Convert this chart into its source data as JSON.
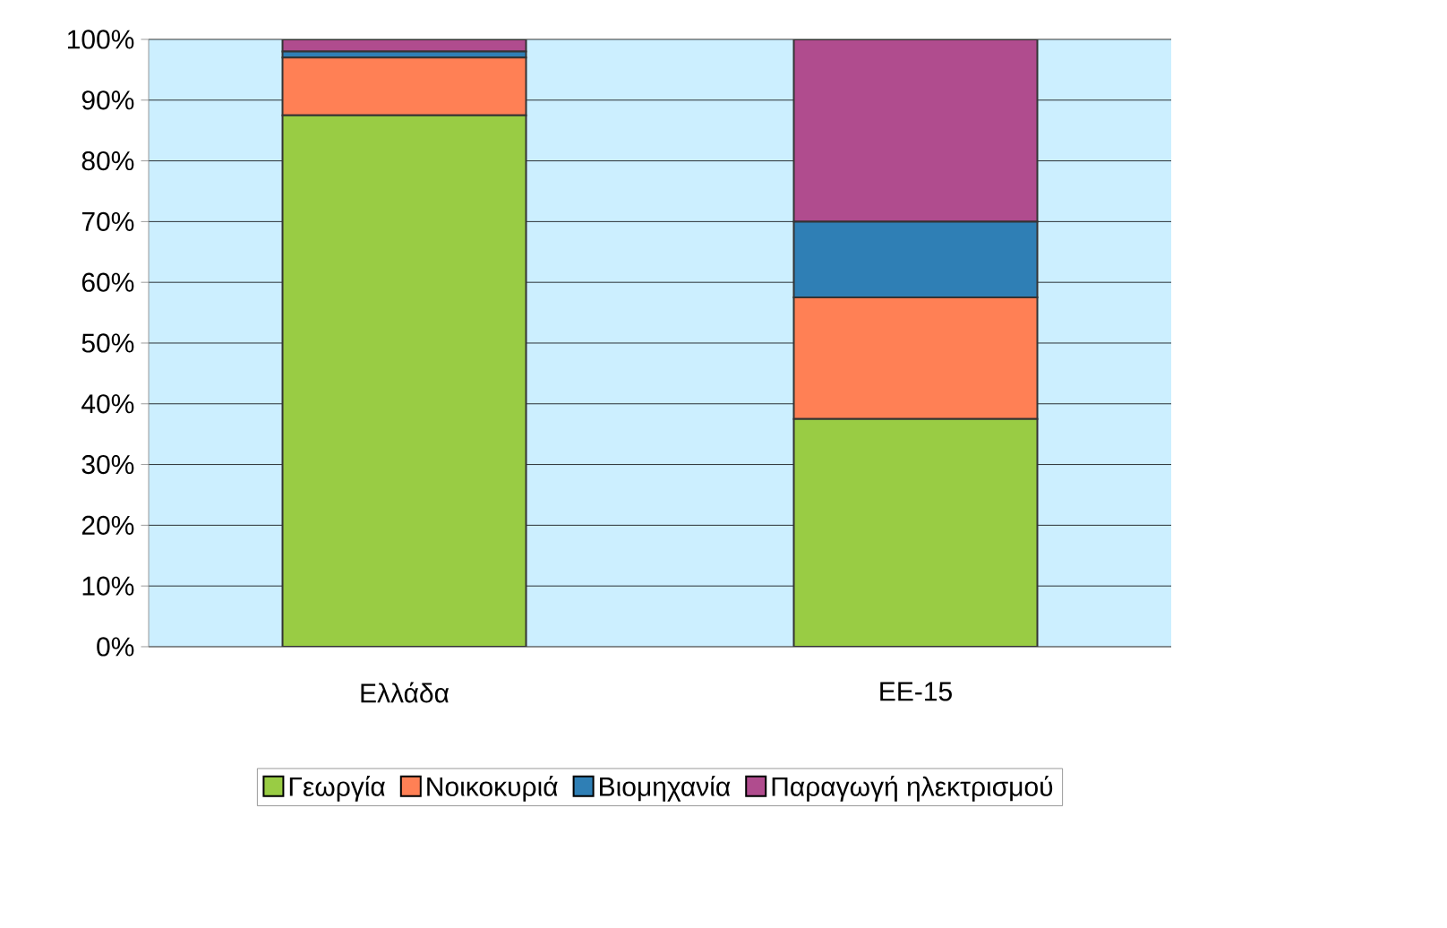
{
  "chart_data": {
    "type": "bar",
    "stacked": true,
    "categories": [
      "Ελλάδα",
      "ΕΕ-15"
    ],
    "series": [
      {
        "name": "Γεωργία",
        "color": "#99cc44",
        "values": [
          87.5,
          37.5
        ]
      },
      {
        "name": "Νοικοκυριά",
        "color": "#ff8055",
        "values": [
          9.5,
          20
        ]
      },
      {
        "name": "Βιομηχανία",
        "color": "#2f7fb5",
        "values": [
          1,
          12.5
        ]
      },
      {
        "name": "Παραγωγή ηλεκτρισμού",
        "color": "#b04c8e",
        "values": [
          2,
          30
        ]
      }
    ],
    "ylim": [
      0,
      100
    ],
    "yticks": [
      {
        "value": 0,
        "label": "0%"
      },
      {
        "value": 10,
        "label": "10%"
      },
      {
        "value": 20,
        "label": "20%"
      },
      {
        "value": 30,
        "label": "30%"
      },
      {
        "value": 40,
        "label": "40%"
      },
      {
        "value": 50,
        "label": "50%"
      },
      {
        "value": 60,
        "label": "60%"
      },
      {
        "value": 70,
        "label": "70%"
      },
      {
        "value": 80,
        "label": "80%"
      },
      {
        "value": 90,
        "label": "90%"
      },
      {
        "value": 100,
        "label": "100%"
      }
    ],
    "grid": "y",
    "legend": "bottom"
  }
}
